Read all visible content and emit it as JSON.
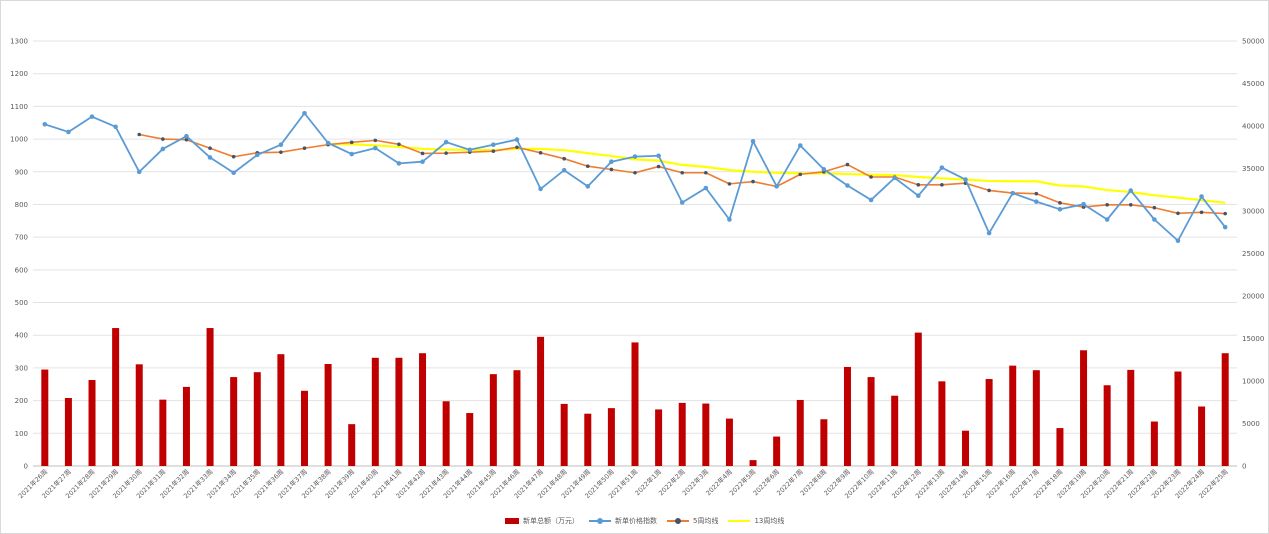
{
  "chart_data": {
    "type": "bar-line-combo",
    "colors": {
      "bars": "#c00000",
      "price_index": "#5b9bd5",
      "ma5_line": "#ed7d31",
      "ma5_marker": "#44546a",
      "ma13": "#ffff00",
      "grid": "#e3e3e3"
    },
    "grid": true,
    "legend_position": "bottom",
    "left_axis": {
      "ylim": [
        0,
        1300
      ],
      "ticks": [
        "0",
        "100",
        "200",
        "300",
        "400",
        "500",
        "600",
        "700",
        "800",
        "900",
        "1000",
        "1100",
        "1200",
        "1300"
      ]
    },
    "right_axis": {
      "ylim": [
        0,
        50000
      ],
      "ticks": [
        "0",
        "5000",
        "10000",
        "15000",
        "20000",
        "25000",
        "30000",
        "35000",
        "40000",
        "45000",
        "50000"
      ]
    },
    "categories": [
      "2021年26周",
      "2021年27周",
      "2021年28周",
      "2021年29周",
      "2021年30周",
      "2021年31周",
      "2021年32周",
      "2021年33周",
      "2021年34周",
      "2021年35周",
      "2021年36周",
      "2021年37周",
      "2021年38周",
      "2021年39周",
      "2021年40周",
      "2021年41周",
      "2021年42周",
      "2021年43周",
      "2021年44周",
      "2021年45周",
      "2021年46周",
      "2021年47周",
      "2021年48周",
      "2021年49周",
      "2021年50周",
      "2021年51周",
      "2022年1周",
      "2022年2周",
      "2022年3周",
      "2022年4周",
      "2022年5周",
      "2022年6周",
      "2022年7周",
      "2022年8周",
      "2022年9周",
      "2022年10周",
      "2022年11周",
      "2022年12周",
      "2022年13周",
      "2022年14周",
      "2022年15周",
      "2022年16周",
      "2022年17周",
      "2022年18周",
      "2022年19周",
      "2022年20周",
      "2022年21周",
      "2022年22周",
      "2022年23周",
      "2022年24周",
      "2022年25周"
    ],
    "series": [
      {
        "name": "新单总额（万元）",
        "type": "bar",
        "axis": "left",
        "values": [
          295,
          208,
          263,
          422,
          311,
          203,
          242,
          422,
          272,
          287,
          342,
          230,
          312,
          128,
          331,
          331,
          345,
          198,
          162,
          281,
          293,
          395,
          190,
          160,
          177,
          378,
          173,
          193,
          191,
          145,
          18,
          90,
          202,
          143,
          303,
          272,
          215,
          408,
          259,
          108,
          266,
          307,
          293,
          116,
          354,
          247,
          294,
          136,
          289,
          182,
          345
        ]
      },
      {
        "name": "新单价格指数",
        "type": "line",
        "axis": "right",
        "values": [
          40200,
          39300,
          41100,
          39900,
          34600,
          37300,
          38800,
          36300,
          34500,
          36600,
          37800,
          41500,
          38000,
          36700,
          37400,
          35600,
          35800,
          38100,
          37200,
          37800,
          38400,
          32600,
          34800,
          32900,
          35800,
          36400,
          36500,
          31000,
          32700,
          29000,
          38200,
          32900,
          37700,
          34900,
          33000,
          31300,
          33900,
          31800,
          35100,
          33700,
          27400,
          32100,
          31100,
          30200,
          30800,
          29000,
          32400,
          29000,
          26500,
          31700,
          28100
        ]
      },
      {
        "name": "5周均线",
        "type": "line",
        "axis": "left",
        "values": [
          null,
          null,
          null,
          null,
          1014,
          1000,
          998,
          972,
          946,
          958,
          960,
          972,
          983,
          990,
          996,
          984,
          956,
          957,
          960,
          963,
          975,
          958,
          940,
          917,
          907,
          897,
          916,
          897,
          897,
          863,
          870,
          855,
          892,
          900,
          922,
          884,
          884,
          860,
          860,
          865,
          843,
          835,
          833,
          805,
          792,
          799,
          799,
          790,
          773,
          776,
          772
        ]
      },
      {
        "name": "13周均线",
        "type": "line",
        "axis": "left",
        "values": [
          null,
          null,
          null,
          null,
          null,
          null,
          null,
          null,
          null,
          null,
          null,
          null,
          985,
          984,
          981,
          976,
          970,
          968,
          967,
          966,
          970,
          970,
          966,
          957,
          948,
          938,
          934,
          921,
          915,
          905,
          900,
          897,
          895,
          895,
          893,
          891,
          890,
          884,
          880,
          876,
          872,
          871,
          871,
          858,
          855,
          844,
          838,
          828,
          821,
          813,
          805
        ]
      }
    ]
  }
}
